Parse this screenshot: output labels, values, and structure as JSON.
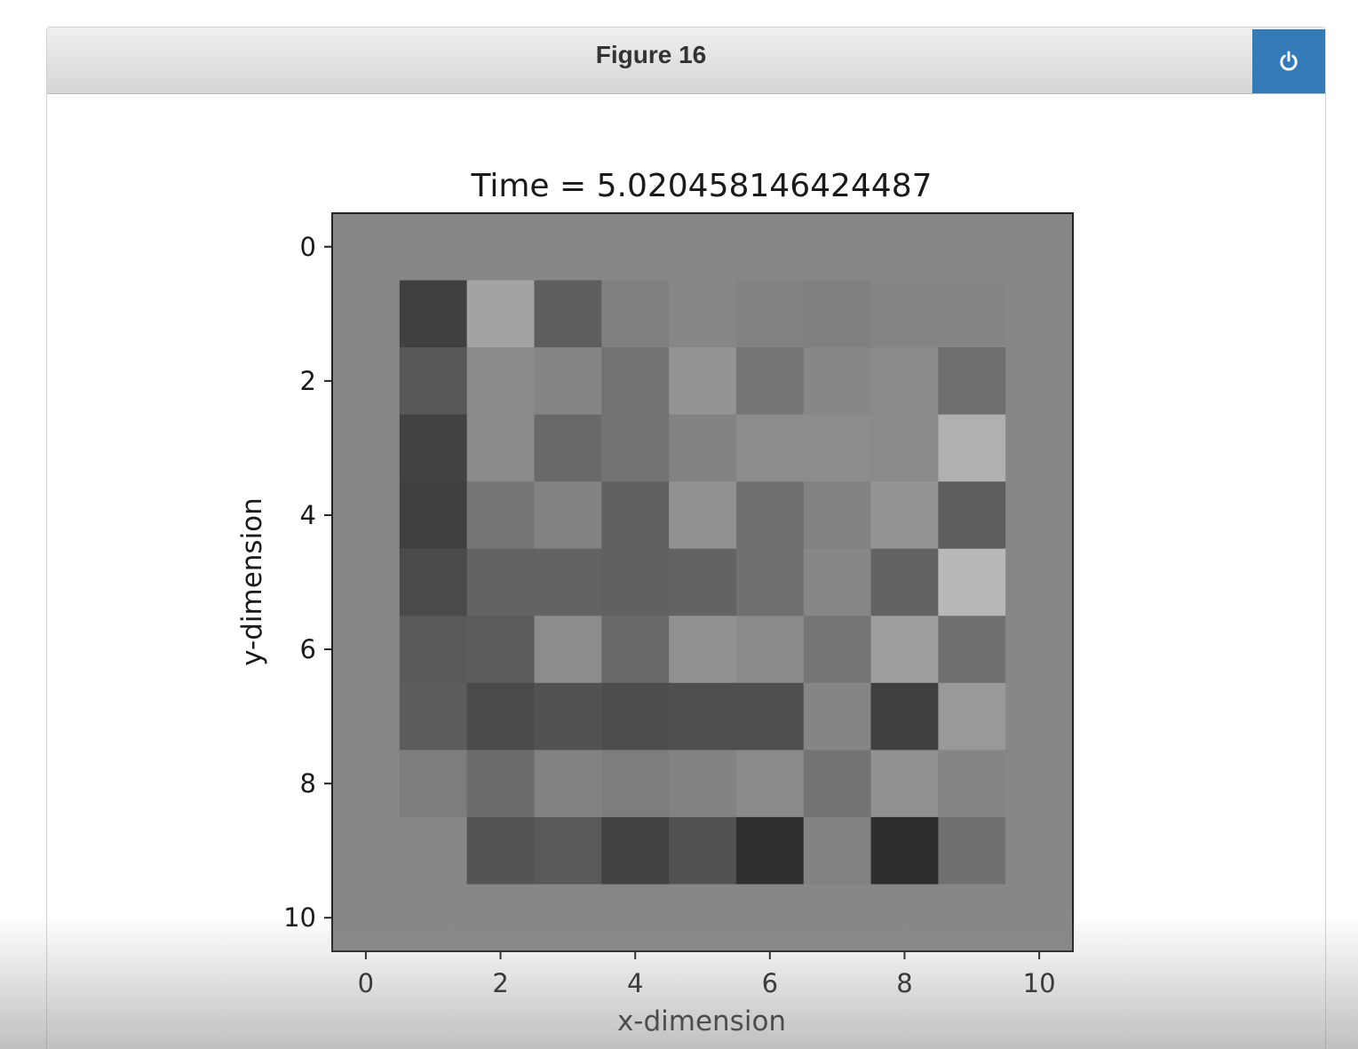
{
  "window": {
    "title": "Figure 16",
    "power_icon": "power-icon",
    "accent": "#337ab7"
  },
  "chart_data": {
    "type": "heatmap",
    "title": "Time = 5.020458146424487",
    "xlabel": "x-dimension",
    "ylabel": "y-dimension",
    "colormap": "gray",
    "xlim": [
      -0.5,
      10.5
    ],
    "ylim": [
      10.5,
      -0.5
    ],
    "x_ticks": [
      "0",
      "2",
      "4",
      "6",
      "8",
      "10"
    ],
    "y_ticks": [
      "0",
      "2",
      "4",
      "6",
      "8",
      "10"
    ],
    "grid": false,
    "values": [
      [
        0.53,
        0.53,
        0.53,
        0.53,
        0.53,
        0.53,
        0.53,
        0.53,
        0.53,
        0.53,
        0.53
      ],
      [
        0.53,
        0.25,
        0.64,
        0.37,
        0.5,
        0.53,
        0.51,
        0.5,
        0.52,
        0.52,
        0.53
      ],
      [
        0.53,
        0.34,
        0.54,
        0.52,
        0.45,
        0.58,
        0.46,
        0.53,
        0.54,
        0.43,
        0.53
      ],
      [
        0.53,
        0.26,
        0.54,
        0.41,
        0.45,
        0.51,
        0.55,
        0.55,
        0.54,
        0.69,
        0.53
      ],
      [
        0.53,
        0.25,
        0.46,
        0.51,
        0.38,
        0.57,
        0.44,
        0.51,
        0.58,
        0.37,
        0.53
      ],
      [
        0.53,
        0.29,
        0.39,
        0.39,
        0.38,
        0.39,
        0.44,
        0.53,
        0.39,
        0.72,
        0.53
      ],
      [
        0.53,
        0.35,
        0.36,
        0.55,
        0.41,
        0.57,
        0.54,
        0.46,
        0.62,
        0.44,
        0.53
      ],
      [
        0.53,
        0.36,
        0.29,
        0.32,
        0.3,
        0.31,
        0.31,
        0.52,
        0.25,
        0.6,
        0.53
      ],
      [
        0.53,
        0.49,
        0.42,
        0.51,
        0.49,
        0.51,
        0.54,
        0.45,
        0.57,
        0.52,
        0.53
      ],
      [
        0.53,
        0.53,
        0.33,
        0.35,
        0.26,
        0.32,
        0.19,
        0.51,
        0.18,
        0.44,
        0.53
      ],
      [
        0.53,
        0.53,
        0.53,
        0.53,
        0.53,
        0.53,
        0.53,
        0.53,
        0.53,
        0.53,
        0.53
      ]
    ]
  }
}
